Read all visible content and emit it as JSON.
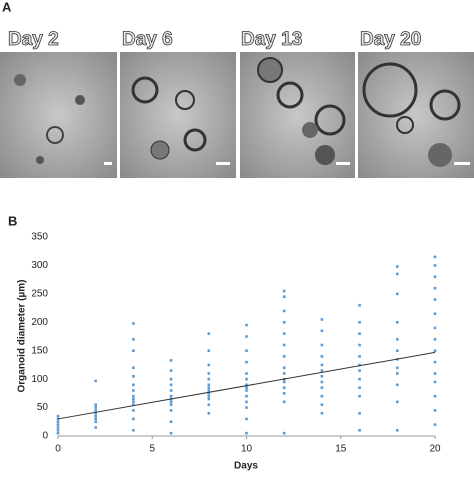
{
  "figure": {
    "panel_a_label": "A",
    "panel_b_label": "B",
    "images": [
      "Day 2",
      "Day 6",
      "Day 13",
      "Day 20"
    ]
  },
  "chart_data": {
    "type": "scatter",
    "xlabel": "Days",
    "ylabel": "Organoid diameter (µm)",
    "color": "#5b9bd5",
    "x": [
      0,
      0,
      0,
      0,
      0,
      0,
      0,
      2,
      2,
      2,
      2,
      2,
      2,
      2,
      2,
      2,
      4,
      4,
      4,
      4,
      4,
      4,
      4,
      4,
      4,
      4,
      4,
      4,
      4,
      4,
      6,
      6,
      6,
      6,
      6,
      6,
      6,
      6,
      6,
      6,
      6,
      6,
      8,
      8,
      8,
      8,
      8,
      8,
      8,
      8,
      8,
      8,
      8,
      8,
      8,
      10,
      10,
      10,
      10,
      10,
      10,
      10,
      10,
      10,
      10,
      10,
      10,
      10,
      10,
      12,
      12,
      12,
      12,
      12,
      12,
      12,
      12,
      12,
      12,
      12,
      12,
      12,
      12,
      12,
      14,
      14,
      14,
      14,
      14,
      14,
      14,
      14,
      14,
      14,
      14,
      14,
      16,
      16,
      16,
      16,
      16,
      16,
      16,
      16,
      16,
      16,
      16,
      16,
      18,
      18,
      18,
      18,
      18,
      18,
      18,
      18,
      18,
      18,
      18,
      18,
      20,
      20,
      20,
      20,
      20,
      20,
      20,
      20,
      20,
      20,
      20,
      20,
      20,
      20,
      20
    ],
    "values": [
      5,
      10,
      15,
      20,
      25,
      30,
      35,
      15,
      25,
      30,
      35,
      40,
      45,
      50,
      55,
      97,
      10,
      30,
      45,
      55,
      60,
      65,
      70,
      80,
      90,
      105,
      120,
      150,
      170,
      198,
      5,
      25,
      45,
      55,
      60,
      65,
      70,
      80,
      90,
      100,
      115,
      133,
      40,
      55,
      65,
      70,
      75,
      80,
      85,
      90,
      100,
      110,
      125,
      150,
      180,
      5,
      30,
      50,
      60,
      70,
      80,
      85,
      90,
      100,
      110,
      130,
      150,
      175,
      195,
      5,
      60,
      75,
      85,
      95,
      100,
      110,
      120,
      140,
      160,
      180,
      200,
      220,
      245,
      255,
      40,
      55,
      70,
      85,
      95,
      105,
      115,
      125,
      140,
      160,
      185,
      205,
      10,
      40,
      70,
      85,
      100,
      115,
      125,
      140,
      160,
      180,
      200,
      230,
      10,
      60,
      90,
      110,
      120,
      135,
      150,
      170,
      200,
      250,
      285,
      298,
      20,
      45,
      70,
      95,
      110,
      130,
      150,
      170,
      190,
      215,
      240,
      260,
      280,
      300,
      315
    ],
    "trendline": {
      "x": [
        0,
        20
      ],
      "values": [
        30,
        147
      ],
      "color": "#333333"
    },
    "xlim": [
      0,
      20
    ],
    "xticks": [
      0,
      5,
      10,
      15,
      20
    ],
    "ylim": [
      0,
      350
    ],
    "yticks": [
      0,
      50,
      100,
      150,
      200,
      250,
      300,
      350
    ],
    "grid": false
  }
}
